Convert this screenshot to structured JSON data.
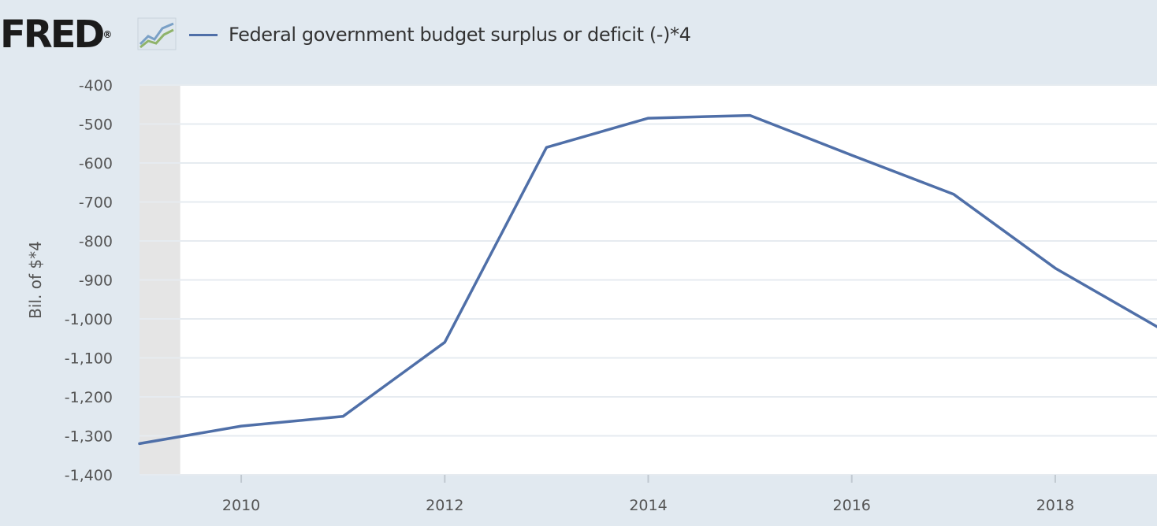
{
  "header": {
    "logo_text": "FRED",
    "logo_mark": "®",
    "legend_label": "Federal government budget surplus or deficit (-)*4"
  },
  "colors": {
    "background": "#e1e9f0",
    "plot_background": "#ffffff",
    "recession_shading": "#e5e5e5",
    "series_line": "#4f6fa8",
    "gridline": "#e6ebf0"
  },
  "chart_data": {
    "type": "line",
    "title": "",
    "xlabel": "",
    "ylabel": "Bil. of $*4",
    "x": [
      2009,
      2010,
      2011,
      2012,
      2013,
      2014,
      2015,
      2016,
      2017,
      2018,
      2019
    ],
    "series": [
      {
        "name": "Federal government budget surplus or deficit (-)*4",
        "values": [
          -1320,
          -1275,
          -1250,
          -1060,
          -560,
          -485,
          -478,
          -580,
          -680,
          -870,
          -1020
        ]
      }
    ],
    "xlim": [
      2009,
      2019
    ],
    "ylim": [
      -1400,
      -400
    ],
    "x_ticks": [
      2010,
      2012,
      2014,
      2016,
      2018
    ],
    "x_tick_labels": [
      "2010",
      "2012",
      "2014",
      "2016",
      "2018"
    ],
    "y_ticks": [
      -400,
      -500,
      -600,
      -700,
      -800,
      -900,
      -1000,
      -1100,
      -1200,
      -1300,
      -1400
    ],
    "y_tick_labels": [
      "-400",
      "-500",
      "-600",
      "-700",
      "-800",
      "-900",
      "-1,000",
      "-1,100",
      "-1,200",
      "-1,300",
      "-1,400"
    ],
    "recession_shade": [
      2009,
      2009.4
    ],
    "grid": true,
    "legend": "top-left"
  }
}
